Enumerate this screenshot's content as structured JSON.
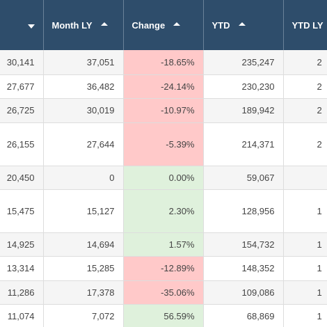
{
  "columns": {
    "month_ly": "Month LY",
    "change": "Change",
    "ytd": "YTD",
    "ytd_ly": "YTD LY"
  },
  "rows": [
    {
      "month": "30,141",
      "month_ly": "37,051",
      "change": "-18.65%",
      "change_sign": "neg",
      "ytd": "235,247",
      "ytd_ly": "2"
    },
    {
      "month": "27,677",
      "month_ly": "36,482",
      "change": "-24.14%",
      "change_sign": "neg",
      "ytd": "230,230",
      "ytd_ly": "2"
    },
    {
      "month": "26,725",
      "month_ly": "30,019",
      "change": "-10.97%",
      "change_sign": "neg",
      "ytd": "189,942",
      "ytd_ly": "2"
    },
    {
      "month": "26,155",
      "month_ly": "27,644",
      "change": "-5.39%",
      "change_sign": "neg",
      "ytd": "214,371",
      "ytd_ly": "2"
    },
    {
      "month": "20,450",
      "month_ly": "0",
      "change": "0.00%",
      "change_sign": "pos",
      "ytd": "59,067",
      "ytd_ly": ""
    },
    {
      "month": "15,475",
      "month_ly": "15,127",
      "change": "2.30%",
      "change_sign": "pos",
      "ytd": "128,956",
      "ytd_ly": "1"
    },
    {
      "month": "14,925",
      "month_ly": "14,694",
      "change": "1.57%",
      "change_sign": "pos",
      "ytd": "154,732",
      "ytd_ly": "1"
    },
    {
      "month": "13,314",
      "month_ly": "15,285",
      "change": "-12.89%",
      "change_sign": "neg",
      "ytd": "148,352",
      "ytd_ly": "1"
    },
    {
      "month": "11,286",
      "month_ly": "17,378",
      "change": "-35.06%",
      "change_sign": "neg",
      "ytd": "109,086",
      "ytd_ly": "1"
    },
    {
      "month": "11,074",
      "month_ly": "7,072",
      "change": "56.59%",
      "change_sign": "pos",
      "ytd": "68,869",
      "ytd_ly": "1"
    }
  ],
  "colors": {
    "header_bg": "#2e4d6b",
    "negative_bg": "#ffc9c9",
    "positive_bg": "#dff1dc"
  }
}
